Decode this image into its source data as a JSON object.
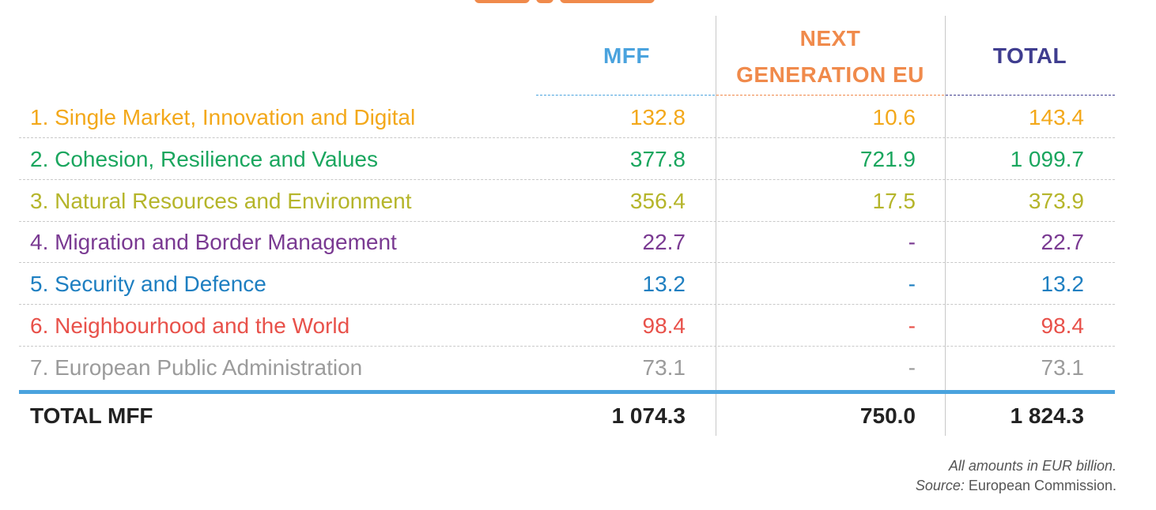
{
  "chart_data": {
    "type": "table",
    "notes": {
      "amounts": "All amounts in EUR billion.",
      "source_label": "Source:",
      "source_value": "European Commission."
    },
    "columns": [
      {
        "label_lines": [
          "MFF"
        ],
        "color": "#4aa3de"
      },
      {
        "label_lines": [
          "NEXT",
          "GENERATION EU"
        ],
        "color": "#f08a4b"
      },
      {
        "label_lines": [
          "TOTAL"
        ],
        "color": "#3f3d8f"
      }
    ],
    "rows": [
      {
        "category": "1. Single Market, Innovation and Digital",
        "color": "#f3a81a",
        "values": [
          "132.8",
          "10.6",
          "143.4"
        ]
      },
      {
        "category": "2. Cohesion, Resilience and Values",
        "color": "#1aa65e",
        "values": [
          "377.8",
          "721.9",
          "1 099.7"
        ]
      },
      {
        "category": "3. Natural Resources and Environment",
        "color": "#b5b52a",
        "values": [
          "356.4",
          "17.5",
          "373.9"
        ]
      },
      {
        "category": "4. Migration and Border Management",
        "color": "#7a3a92",
        "values": [
          "22.7",
          "-",
          "22.7"
        ]
      },
      {
        "category": "5. Security and Defence",
        "color": "#1e7fc1",
        "values": [
          "13.2",
          "-",
          "13.2"
        ]
      },
      {
        "category": "6. Neighbourhood and the World",
        "color": "#e8514a",
        "values": [
          "98.4",
          "-",
          "98.4"
        ]
      },
      {
        "category": "7. European Public Administration",
        "color": "#9b9b9b",
        "values": [
          "73.1",
          "-",
          "73.1"
        ]
      }
    ],
    "total": {
      "category": "TOTAL MFF",
      "values": [
        "1 074.3",
        "750.0",
        "1 824.3"
      ]
    }
  }
}
